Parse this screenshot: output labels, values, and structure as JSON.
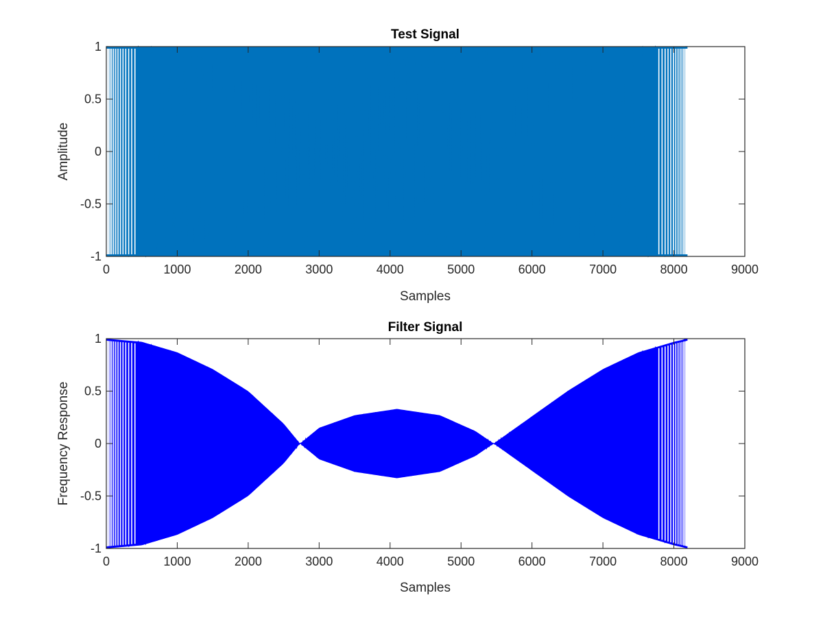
{
  "chart_data": [
    {
      "type": "line",
      "title": "Test Signal",
      "xlabel": "Samples",
      "ylabel": "Amplitude",
      "xlim": [
        0,
        9000
      ],
      "ylim": [
        -1,
        1
      ],
      "xticks": [
        0,
        1000,
        2000,
        3000,
        4000,
        5000,
        6000,
        7000,
        8000,
        9000
      ],
      "yticks": [
        -1,
        -0.5,
        0,
        0.5,
        1
      ],
      "xtick_labels": [
        "0",
        "1000",
        "2000",
        "3000",
        "4000",
        "5000",
        "6000",
        "7000",
        "8000",
        "9000"
      ],
      "ytick_labels": [
        "-1",
        "-0.5",
        "0",
        "0.5",
        "1"
      ],
      "grid": false,
      "series": [
        {
          "color": "#0072BD",
          "description_n_samples": 8192,
          "x_range": [
            0,
            8192
          ],
          "envelope_x": [
            0,
            1000,
            2000,
            3000,
            4000,
            5000,
            6000,
            7000,
            8000,
            8192
          ],
          "envelope_upper": [
            1,
            1,
            1,
            1,
            1,
            1,
            1,
            1,
            1,
            1
          ],
          "envelope_lower": [
            -1,
            -1,
            -1,
            -1,
            -1,
            -1,
            -1,
            -1,
            -1,
            -1
          ]
        }
      ]
    },
    {
      "type": "line",
      "title": "Filter Signal",
      "xlabel": "Samples",
      "ylabel": "Frequency Response",
      "xlim": [
        0,
        9000
      ],
      "ylim": [
        -1,
        1
      ],
      "xticks": [
        0,
        1000,
        2000,
        3000,
        4000,
        5000,
        6000,
        7000,
        8000,
        9000
      ],
      "yticks": [
        -1,
        -0.5,
        0,
        0.5,
        1
      ],
      "xtick_labels": [
        "0",
        "1000",
        "2000",
        "3000",
        "4000",
        "5000",
        "6000",
        "7000",
        "8000",
        "9000"
      ],
      "ytick_labels": [
        "-1",
        "-0.5",
        "0",
        "0.5",
        "1"
      ],
      "grid": false,
      "series": [
        {
          "color": "#0000FF",
          "x_range": [
            0,
            8192
          ],
          "envelope_x": [
            0,
            500,
            1000,
            1500,
            2000,
            2500,
            2730,
            3000,
            3500,
            4096,
            4700,
            5200,
            5460,
            6000,
            6500,
            7000,
            7500,
            8000,
            8192
          ],
          "envelope_upper": [
            1,
            0.97,
            0.87,
            0.71,
            0.5,
            0.19,
            0,
            0.15,
            0.27,
            0.33,
            0.27,
            0.12,
            0,
            0.26,
            0.5,
            0.71,
            0.87,
            0.97,
            1
          ]
        }
      ]
    }
  ]
}
